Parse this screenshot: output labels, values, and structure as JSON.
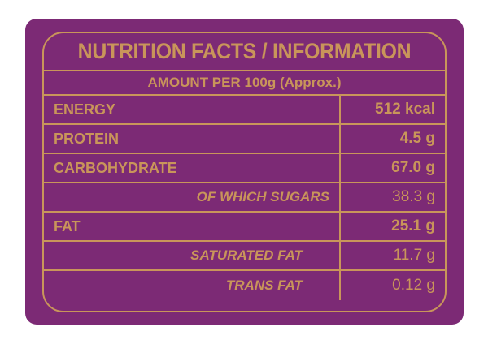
{
  "label": {
    "title": "NUTRITION FACTS / INFORMATION",
    "subtitle": "AMOUNT PER 100g (Approx.)",
    "rows": [
      {
        "name": "ENERGY",
        "value": "512 kcal"
      },
      {
        "name": "PROTEIN",
        "value": "4.5 g"
      },
      {
        "name": "CARBOHYDRATE",
        "value": "67.0 g"
      },
      {
        "name": "OF WHICH SUGARS",
        "value": "38.3 g"
      },
      {
        "name": "FAT",
        "value": "25.1 g"
      },
      {
        "name": "SATURATED FAT",
        "value": "11.7 g"
      },
      {
        "name": "TRANS FAT",
        "value": "0.12 g"
      }
    ],
    "colors": {
      "background": "#7c2a75",
      "text_and_rules": "#c9955a",
      "page": "#ffffff"
    }
  }
}
